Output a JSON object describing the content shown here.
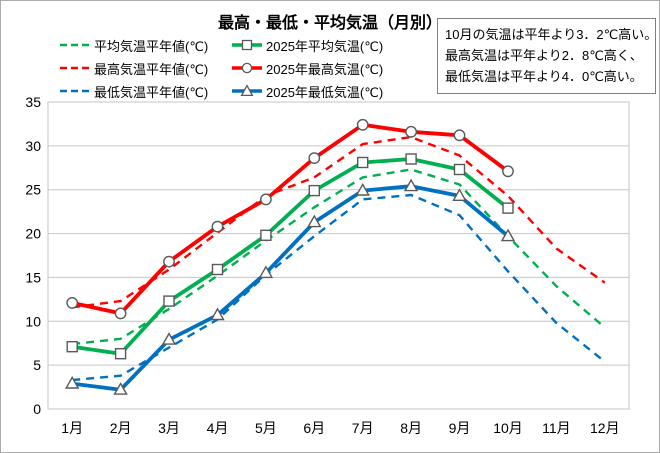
{
  "chart_data": {
    "type": "line",
    "title": "最高・最低・平均気温（月別）",
    "categories": [
      "1月",
      "2月",
      "3月",
      "4月",
      "5月",
      "6月",
      "7月",
      "8月",
      "9月",
      "10月",
      "11月",
      "12月"
    ],
    "y_ticks": [
      0,
      5,
      10,
      15,
      20,
      25,
      30,
      35
    ],
    "ylim": [
      0,
      35
    ],
    "grid": true,
    "legend_position": "top-left-two-columns",
    "colors": {
      "red": "#ff0000",
      "green": "#00b050",
      "blue": "#0070c0",
      "grid": "#c6c6c6",
      "marker_outline": "#595959"
    },
    "series": [
      {
        "key": "avg-normal",
        "name": "平均気温平年値(℃)",
        "color": "#00b050",
        "style": "dashed",
        "marker": "none",
        "values": [
          7.4,
          8.0,
          11.4,
          15.2,
          19.2,
          23.0,
          26.4,
          27.3,
          25.6,
          19.7,
          14.0,
          9.3
        ]
      },
      {
        "key": "avg-2025",
        "name": "2025年平均気温(℃)",
        "color": "#00b050",
        "style": "solid",
        "marker": "square",
        "values": [
          7.1,
          6.3,
          12.3,
          15.9,
          19.8,
          24.9,
          28.1,
          28.5,
          27.3,
          22.9
        ]
      },
      {
        "key": "max-normal",
        "name": "最高気温平年値(℃)",
        "color": "#ff0000",
        "style": "dashed",
        "marker": "none",
        "values": [
          11.6,
          12.3,
          15.9,
          20.1,
          24.3,
          26.4,
          30.2,
          31.0,
          28.9,
          24.3,
          18.3,
          14.4
        ]
      },
      {
        "key": "max-2025",
        "name": "2025年最高気温(℃)",
        "color": "#ff0000",
        "style": "solid",
        "marker": "circle",
        "values": [
          12.1,
          10.9,
          16.8,
          20.8,
          23.9,
          28.6,
          32.4,
          31.6,
          31.2,
          27.1
        ]
      },
      {
        "key": "min-normal",
        "name": "最低気温平年値(℃)",
        "color": "#0070c0",
        "style": "dashed",
        "marker": "none",
        "values": [
          3.3,
          3.8,
          7.0,
          10.2,
          15.3,
          19.7,
          23.9,
          24.4,
          22.1,
          15.7,
          9.8,
          5.4
        ]
      },
      {
        "key": "min-2025",
        "name": "2025年最低気温(℃)",
        "color": "#0070c0",
        "style": "solid",
        "marker": "triangle",
        "values": [
          2.9,
          2.2,
          7.9,
          10.7,
          15.5,
          21.3,
          24.9,
          25.4,
          24.3,
          19.7
        ]
      }
    ]
  },
  "annotation": {
    "lines": [
      "10月の気温は平年より3．2℃高い。",
      "最高気温は平年より2．8℃高く、",
      "最低気温は平年より4．0℃高い。"
    ]
  }
}
